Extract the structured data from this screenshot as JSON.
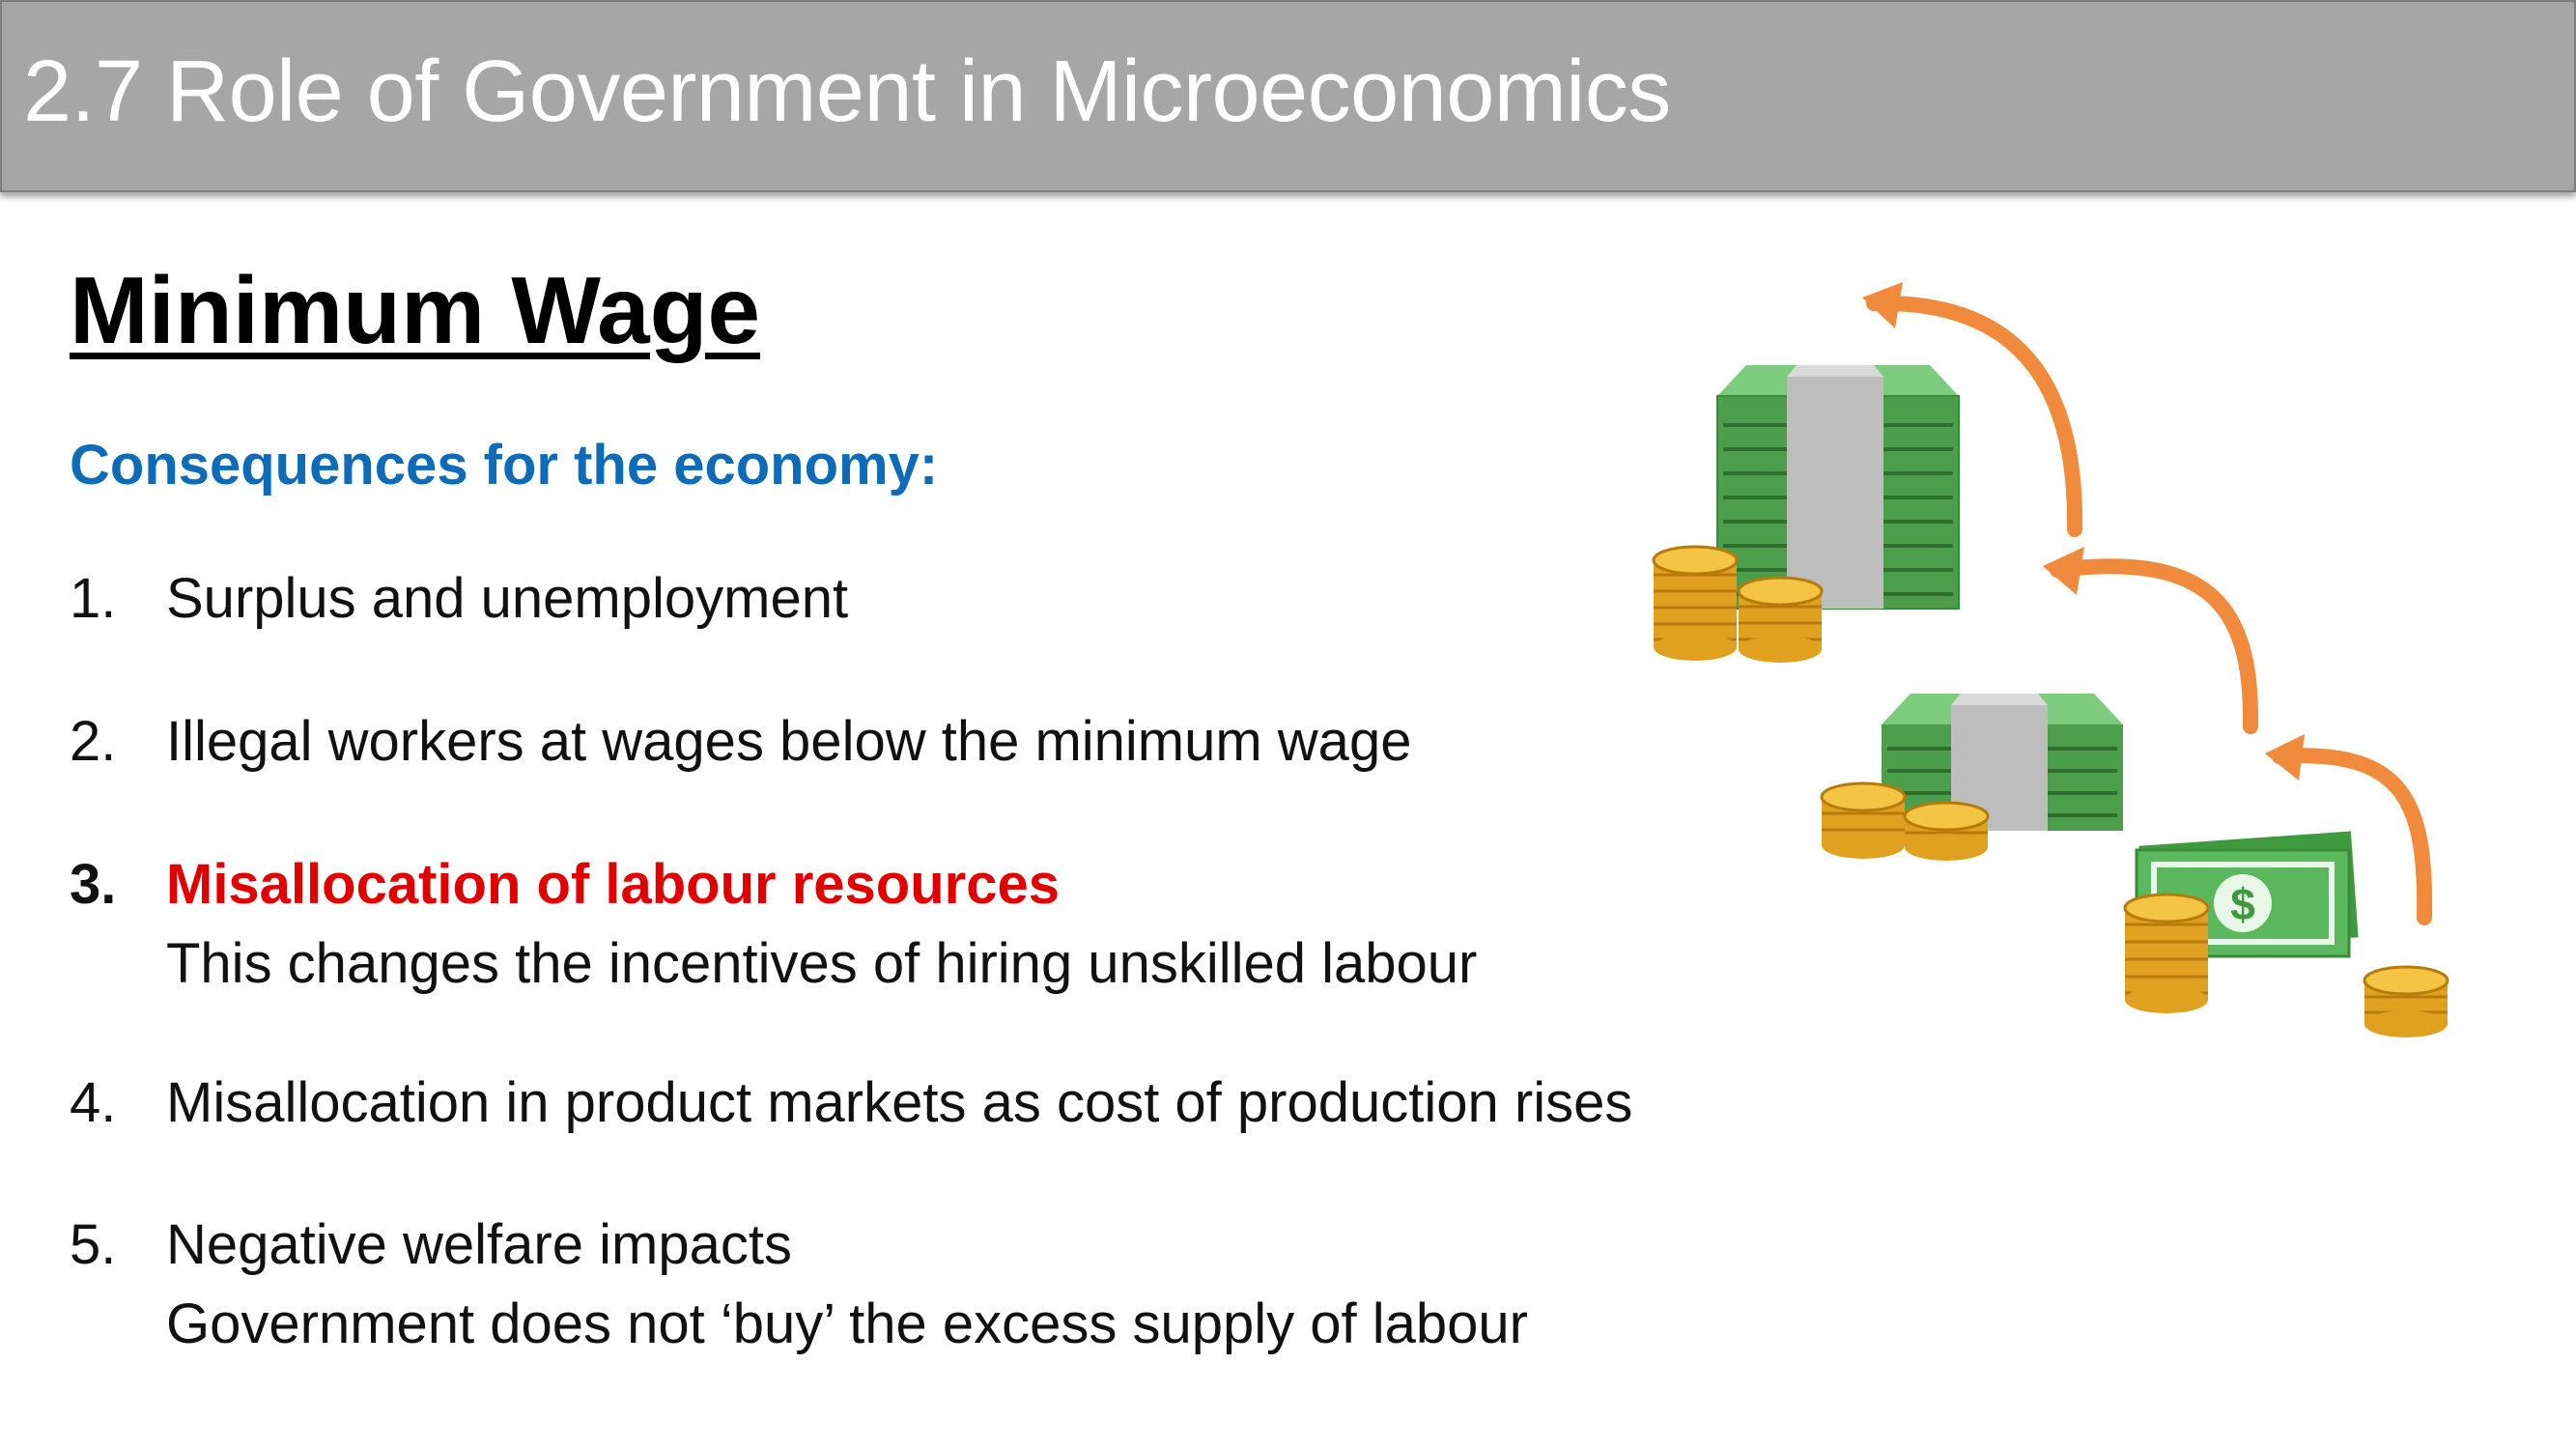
{
  "header": {
    "title": "2.7 Role of Government in Microeconomics"
  },
  "slide": {
    "heading": "Minimum Wage",
    "subheading": "Consequences for the economy:",
    "items": [
      {
        "number": "1.",
        "text": "Surplus and unemployment",
        "detail": ""
      },
      {
        "number": "2.",
        "text": "Illegal workers at wages below the minimum wage",
        "detail": ""
      },
      {
        "number": "3.",
        "text": "Misallocation of labour resources",
        "detail": "This changes the incentives of hiring unskilled labour"
      },
      {
        "number": "4.",
        "text": "Misallocation in product markets as cost of production rises",
        "detail": ""
      },
      {
        "number": "5.",
        "text": "Negative welfare impacts",
        "detail": "Government does not ‘buy’ the excess supply of labour"
      }
    ]
  },
  "illustration": {
    "icon": "money-stacks-decreasing-icon"
  },
  "colors": {
    "header_bg": "#a6a6a6",
    "subheading": "#0e6bb8",
    "highlight": "#e00000",
    "cash_green": "#5cb85c",
    "coin_gold": "#f0b429",
    "arrow_orange": "#f08a3c"
  }
}
